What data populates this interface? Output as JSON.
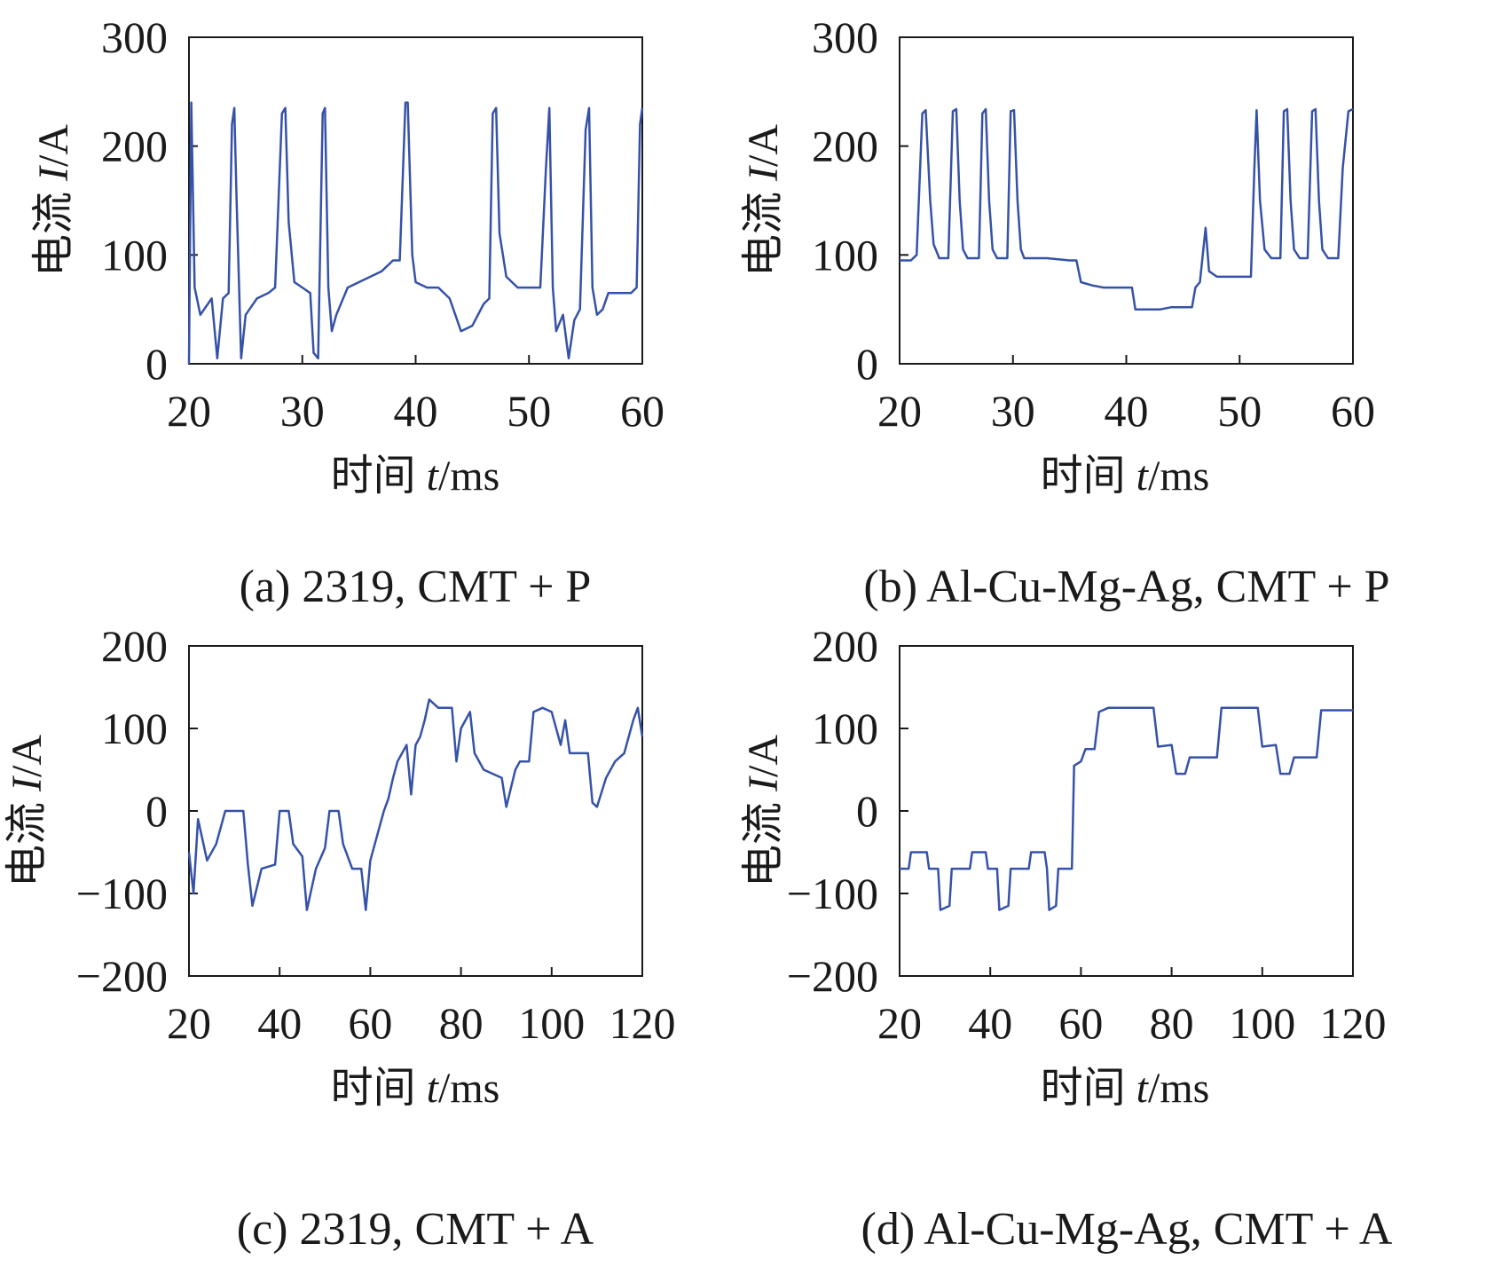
{
  "figure": {
    "line_color": "#3552a8",
    "frame_color": "#1a1a1a",
    "xlabel_main": "时间 ",
    "xlabel_var": "t",
    "xlabel_unit": "/ms",
    "ylabel_main": "电流 ",
    "ylabel_var": "I",
    "ylabel_unit": "/A"
  },
  "chart_data": [
    {
      "id": "a",
      "type": "line",
      "caption": "(a) 2319, CMT + P",
      "xlim": [
        20,
        60
      ],
      "ylim": [
        0,
        300
      ],
      "xticks": [
        20,
        30,
        40,
        50,
        60
      ],
      "yticks": [
        0,
        100,
        200,
        300
      ],
      "points": [
        [
          20,
          0
        ],
        [
          20.2,
          240
        ],
        [
          20.5,
          70
        ],
        [
          21,
          45
        ],
        [
          22,
          60
        ],
        [
          22.5,
          5
        ],
        [
          23,
          60
        ],
        [
          23.5,
          65
        ],
        [
          23.8,
          220
        ],
        [
          24,
          235
        ],
        [
          24.2,
          150
        ],
        [
          24.6,
          5
        ],
        [
          25,
          45
        ],
        [
          26,
          60
        ],
        [
          27,
          65
        ],
        [
          27.6,
          70
        ],
        [
          28.2,
          230
        ],
        [
          28.5,
          235
        ],
        [
          28.8,
          130
        ],
        [
          29.3,
          75
        ],
        [
          30,
          70
        ],
        [
          30.7,
          65
        ],
        [
          31,
          10
        ],
        [
          31.4,
          5
        ],
        [
          31.8,
          230
        ],
        [
          32,
          235
        ],
        [
          32.3,
          70
        ],
        [
          32.6,
          30
        ],
        [
          33,
          45
        ],
        [
          34,
          70
        ],
        [
          35,
          75
        ],
        [
          36,
          80
        ],
        [
          37,
          85
        ],
        [
          38,
          95
        ],
        [
          38.6,
          95
        ],
        [
          39.1,
          240
        ],
        [
          39.3,
          240
        ],
        [
          39.7,
          100
        ],
        [
          40,
          75
        ],
        [
          41,
          70
        ],
        [
          42,
          70
        ],
        [
          43,
          60
        ],
        [
          44,
          30
        ],
        [
          45,
          35
        ],
        [
          46,
          55
        ],
        [
          46.5,
          60
        ],
        [
          46.8,
          230
        ],
        [
          47.1,
          235
        ],
        [
          47.4,
          120
        ],
        [
          48,
          80
        ],
        [
          49,
          70
        ],
        [
          50,
          70
        ],
        [
          51,
          70
        ],
        [
          51.5,
          180
        ],
        [
          51.8,
          235
        ],
        [
          52.1,
          70
        ],
        [
          52.4,
          30
        ],
        [
          53,
          45
        ],
        [
          53.5,
          5
        ],
        [
          54,
          40
        ],
        [
          54.5,
          50
        ],
        [
          55,
          215
        ],
        [
          55.3,
          235
        ],
        [
          55.6,
          70
        ],
        [
          56,
          45
        ],
        [
          56.5,
          50
        ],
        [
          57,
          65
        ],
        [
          58,
          65
        ],
        [
          59,
          65
        ],
        [
          59.5,
          70
        ],
        [
          59.8,
          220
        ],
        [
          60,
          235
        ]
      ]
    },
    {
      "id": "b",
      "type": "line",
      "caption": "(b) Al-Cu-Mg-Ag, CMT + P",
      "xlim": [
        20,
        60
      ],
      "ylim": [
        0,
        300
      ],
      "xticks": [
        20,
        30,
        40,
        50,
        60
      ],
      "yticks": [
        0,
        100,
        200,
        300
      ],
      "points": [
        [
          20,
          95
        ],
        [
          21,
          95
        ],
        [
          21.5,
          100
        ],
        [
          22,
          230
        ],
        [
          22.3,
          233
        ],
        [
          22.7,
          150
        ],
        [
          23,
          110
        ],
        [
          23.5,
          97
        ],
        [
          24.3,
          97
        ],
        [
          24.7,
          232
        ],
        [
          25,
          234
        ],
        [
          25.3,
          150
        ],
        [
          25.6,
          105
        ],
        [
          26,
          97
        ],
        [
          27,
          97
        ],
        [
          27.3,
          230
        ],
        [
          27.6,
          234
        ],
        [
          27.9,
          150
        ],
        [
          28.2,
          105
        ],
        [
          28.6,
          97
        ],
        [
          29.5,
          97
        ],
        [
          29.8,
          232
        ],
        [
          30.1,
          233
        ],
        [
          30.4,
          150
        ],
        [
          30.7,
          105
        ],
        [
          31,
          97
        ],
        [
          33,
          97
        ],
        [
          35,
          95
        ],
        [
          35.6,
          95
        ],
        [
          36,
          75
        ],
        [
          37,
          72
        ],
        [
          38,
          70
        ],
        [
          39,
          70
        ],
        [
          40,
          70
        ],
        [
          40.5,
          70
        ],
        [
          40.8,
          50
        ],
        [
          42,
          50
        ],
        [
          43,
          50
        ],
        [
          44,
          52
        ],
        [
          45,
          52
        ],
        [
          45.8,
          52
        ],
        [
          46.1,
          70
        ],
        [
          46.5,
          75
        ],
        [
          47,
          125
        ],
        [
          47.3,
          85
        ],
        [
          48,
          80
        ],
        [
          49,
          80
        ],
        [
          50,
          80
        ],
        [
          51,
          80
        ],
        [
          51.3,
          180
        ],
        [
          51.5,
          233
        ],
        [
          51.8,
          150
        ],
        [
          52.2,
          105
        ],
        [
          52.8,
          97
        ],
        [
          53.6,
          97
        ],
        [
          53.9,
          232
        ],
        [
          54.2,
          234
        ],
        [
          54.5,
          150
        ],
        [
          54.8,
          105
        ],
        [
          55.3,
          97
        ],
        [
          56,
          97
        ],
        [
          56.4,
          232
        ],
        [
          56.7,
          234
        ],
        [
          57,
          150
        ],
        [
          57.3,
          105
        ],
        [
          57.8,
          97
        ],
        [
          58.7,
          97
        ],
        [
          59.1,
          180
        ],
        [
          59.6,
          232
        ],
        [
          60,
          234
        ]
      ]
    },
    {
      "id": "c",
      "type": "line",
      "caption": "(c) 2319, CMT + A",
      "xlim": [
        20,
        120
      ],
      "ylim": [
        -200,
        200
      ],
      "xticks": [
        20,
        40,
        60,
        80,
        100,
        120
      ],
      "yticks": [
        -200,
        -100,
        0,
        100,
        200
      ],
      "points": [
        [
          20,
          -50
        ],
        [
          21,
          -100
        ],
        [
          22,
          -10
        ],
        [
          24,
          -60
        ],
        [
          26,
          -40
        ],
        [
          28,
          0
        ],
        [
          32,
          0
        ],
        [
          33,
          -65
        ],
        [
          34,
          -115
        ],
        [
          36,
          -70
        ],
        [
          39,
          -65
        ],
        [
          40,
          0
        ],
        [
          42,
          0
        ],
        [
          43,
          -40
        ],
        [
          45,
          -55
        ],
        [
          46,
          -120
        ],
        [
          48,
          -70
        ],
        [
          50,
          -45
        ],
        [
          51,
          0
        ],
        [
          53,
          0
        ],
        [
          54,
          -40
        ],
        [
          56,
          -70
        ],
        [
          58,
          -70
        ],
        [
          59,
          -120
        ],
        [
          60,
          -60
        ],
        [
          61,
          -40
        ],
        [
          62,
          -20
        ],
        [
          63,
          0
        ],
        [
          64,
          15
        ],
        [
          65,
          40
        ],
        [
          66,
          60
        ],
        [
          68,
          80
        ],
        [
          69,
          20
        ],
        [
          70,
          80
        ],
        [
          71,
          90
        ],
        [
          72,
          110
        ],
        [
          73,
          135
        ],
        [
          75,
          125
        ],
        [
          78,
          125
        ],
        [
          79,
          60
        ],
        [
          80,
          100
        ],
        [
          82,
          120
        ],
        [
          83,
          70
        ],
        [
          85,
          50
        ],
        [
          87,
          45
        ],
        [
          89,
          40
        ],
        [
          90,
          5
        ],
        [
          92,
          50
        ],
        [
          93,
          60
        ],
        [
          95,
          60
        ],
        [
          96,
          120
        ],
        [
          98,
          125
        ],
        [
          100,
          120
        ],
        [
          102,
          80
        ],
        [
          103,
          110
        ],
        [
          104,
          70
        ],
        [
          106,
          70
        ],
        [
          108,
          70
        ],
        [
          109,
          10
        ],
        [
          110,
          5
        ],
        [
          112,
          40
        ],
        [
          114,
          60
        ],
        [
          116,
          70
        ],
        [
          118,
          110
        ],
        [
          119,
          125
        ],
        [
          120,
          90
        ]
      ]
    },
    {
      "id": "d",
      "type": "line",
      "caption": "(d) Al-Cu-Mg-Ag, CMT + A",
      "xlim": [
        20,
        120
      ],
      "ylim": [
        -200,
        200
      ],
      "xticks": [
        20,
        40,
        60,
        80,
        100,
        120
      ],
      "yticks": [
        -200,
        -100,
        0,
        100,
        200
      ],
      "points": [
        [
          20,
          -70
        ],
        [
          22,
          -70
        ],
        [
          22.5,
          -50
        ],
        [
          26,
          -50
        ],
        [
          26.5,
          -70
        ],
        [
          28.5,
          -70
        ],
        [
          29,
          -120
        ],
        [
          31,
          -115
        ],
        [
          31.5,
          -70
        ],
        [
          35.5,
          -70
        ],
        [
          36,
          -50
        ],
        [
          39,
          -50
        ],
        [
          39.5,
          -70
        ],
        [
          41.5,
          -70
        ],
        [
          42,
          -120
        ],
        [
          44,
          -115
        ],
        [
          44.5,
          -70
        ],
        [
          48.5,
          -70
        ],
        [
          49,
          -50
        ],
        [
          52,
          -50
        ],
        [
          52.5,
          -70
        ],
        [
          53,
          -120
        ],
        [
          54.5,
          -115
        ],
        [
          55,
          -70
        ],
        [
          58,
          -70
        ],
        [
          58.5,
          55
        ],
        [
          60,
          60
        ],
        [
          61,
          75
        ],
        [
          63,
          75
        ],
        [
          64,
          120
        ],
        [
          66,
          125
        ],
        [
          76,
          125
        ],
        [
          77,
          78
        ],
        [
          80,
          80
        ],
        [
          81,
          45
        ],
        [
          83,
          45
        ],
        [
          84,
          65
        ],
        [
          90,
          65
        ],
        [
          91,
          125
        ],
        [
          99,
          125
        ],
        [
          100,
          78
        ],
        [
          103,
          80
        ],
        [
          104,
          45
        ],
        [
          106,
          45
        ],
        [
          107,
          65
        ],
        [
          112,
          65
        ],
        [
          113,
          122
        ],
        [
          120,
          122
        ]
      ]
    }
  ]
}
